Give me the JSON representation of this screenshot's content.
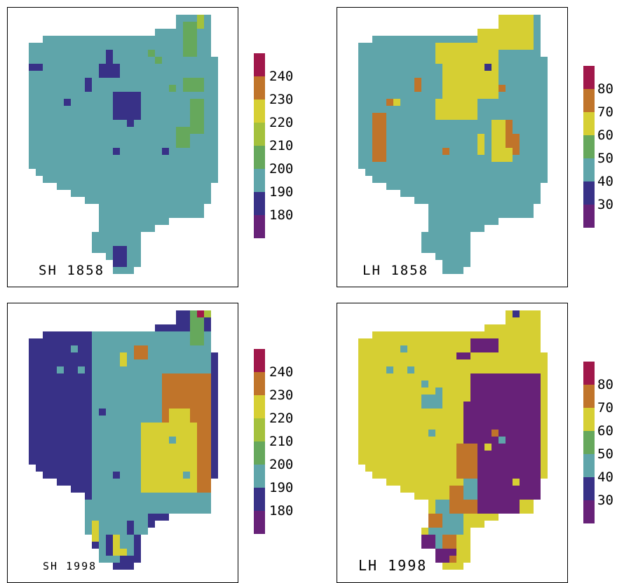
{
  "colors": {
    "deep_purple": "#672178",
    "navy": "#383187",
    "teal": "#5fa5aa",
    "green_dark": "#66a85c",
    "green_lime": "#a4c13c",
    "yellow": "#d6cf33",
    "orange": "#c0742a",
    "crimson": "#a0174a"
  },
  "panels": [
    {
      "id": "sh1858",
      "label": "SH 1858"
    },
    {
      "id": "lh1858",
      "label": "LH 1858"
    },
    {
      "id": "sh1998",
      "label": "SH 1998"
    },
    {
      "id": "lh1998",
      "label": "LH 1998"
    }
  ],
  "legend_sh": {
    "bands": [
      "#672178",
      "#383187",
      "#5fa5aa",
      "#66a85c",
      "#a4c13c",
      "#d6cf33",
      "#c0742a",
      "#a0174a"
    ],
    "labels": [
      "240",
      "230",
      "220",
      "210",
      "200",
      "190",
      "180"
    ]
  },
  "legend_lh": {
    "bands": [
      "#672178",
      "#383187",
      "#5fa5aa",
      "#66a85c",
      "#d6cf33",
      "#c0742a",
      "#a0174a"
    ],
    "labels": [
      "80",
      "70",
      "60",
      "50",
      "40",
      "30"
    ]
  }
}
